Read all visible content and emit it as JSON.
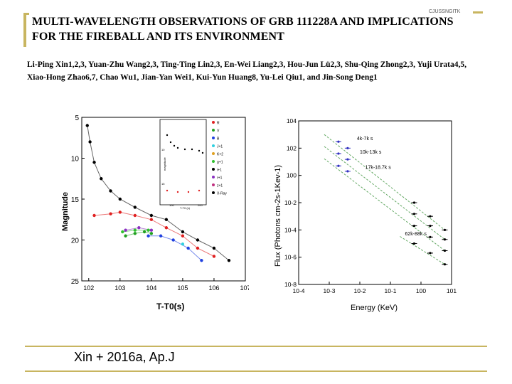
{
  "watermark": "CJUSSNGITK",
  "title": "MULTI-WAVELENGTH OBSERVATIONS OF GRB 111228A AND IMPLICATIONS FOR THE FIREBALL AND ITS ENVIRONMENT",
  "authors": "Li-Ping Xin1,2,3, Yuan-Zhu Wang2,3, Ting-Ting Lin2,3, En-Wei Liang2,3, Hou-Jun Lü2,3, Shu-Qing Zhong2,3, Yuji Urata4,5, Xiao-Hong Zhao6,7, Chao Wu1, Jian-Yan Wei1, Kui-Yun Huang8, Yu-Lei Qiu1, and Jin-Song Deng1",
  "citation": "Xin + 2016a, Ap.J",
  "colors": {
    "accent": "#c8b560"
  },
  "chart_data": [
    {
      "type": "scatter",
      "title": "",
      "xlabel": "T-T0(s)",
      "ylabel": "Magnitude",
      "xscale": "log",
      "xlim": [
        60,
        10000000
      ],
      "ylim": [
        25,
        5
      ],
      "x_ticks": [
        "10^2",
        "10^3",
        "10^4",
        "10^5",
        "10^6",
        "10^7"
      ],
      "y_ticks": [
        "5",
        "10",
        "15",
        "20",
        "25"
      ],
      "legend": [
        "R",
        "V",
        "B",
        "J+1",
        "K+2",
        "g+1",
        "i+1",
        "r+1",
        "z+1",
        "X-Ray"
      ],
      "legend_position": "top-right",
      "series": [
        {
          "name": "X-Ray",
          "color": "#000000",
          "points": [
            [
              90,
              6
            ],
            [
              110,
              8
            ],
            [
              150,
              10.5
            ],
            [
              250,
              12.5
            ],
            [
              500,
              14
            ],
            [
              1000,
              15
            ],
            [
              3000,
              16
            ],
            [
              10000,
              17
            ],
            [
              30000,
              17.5
            ],
            [
              100000,
              19
            ],
            [
              300000,
              20
            ],
            [
              1000000,
              21
            ],
            [
              3000000,
              22.5
            ]
          ]
        },
        {
          "name": "R",
          "color": "#e02020",
          "points": [
            [
              150,
              17
            ],
            [
              500,
              16.8
            ],
            [
              1000,
              16.6
            ],
            [
              3000,
              17
            ],
            [
              10000,
              17.5
            ],
            [
              30000,
              18.5
            ],
            [
              100000,
              19.5
            ],
            [
              300000,
              21
            ],
            [
              1000000,
              22
            ]
          ]
        },
        {
          "name": "V",
          "color": "#20a020",
          "points": [
            [
              1500,
              19.5
            ],
            [
              3000,
              19.2
            ],
            [
              6000,
              19
            ],
            [
              10000,
              19.2
            ]
          ]
        },
        {
          "name": "B",
          "color": "#2040e0",
          "points": [
            [
              8000,
              19.5
            ],
            [
              20000,
              19.5
            ],
            [
              50000,
              20
            ],
            [
              150000,
              21
            ],
            [
              400000,
              22.5
            ]
          ]
        },
        {
          "name": "g+1",
          "color": "#30c030",
          "points": [
            [
              1200,
              19
            ],
            [
              3000,
              18.8
            ],
            [
              8000,
              18.8
            ]
          ]
        },
        {
          "name": "i+1",
          "color": "#8a30c0",
          "points": [
            [
              1500,
              18.8
            ],
            [
              4000,
              18.5
            ],
            [
              10000,
              18.8
            ]
          ]
        },
        {
          "name": "J+1",
          "color": "#30d0e0",
          "points": [
            [
              100000,
              20.5
            ]
          ]
        }
      ],
      "inset": {
        "ylabel": "magnitude",
        "xlabel": "T-T0 (s)",
        "x_ticks": [
          "100",
          "200"
        ],
        "y_ticks": [
          "10",
          "15"
        ]
      }
    },
    {
      "type": "scatter",
      "title": "",
      "xlabel": "Energy (KeV)",
      "ylabel": "Flux (Photons cm-2s-1Kev-1)",
      "xscale": "log",
      "yscale": "log",
      "xlim": [
        0.0001,
        10
      ],
      "ylim": [
        1e-08,
        10000
      ],
      "x_ticks": [
        "10^-4",
        "10^-3",
        "10^-2",
        "10^-1",
        "10^0",
        "10^1"
      ],
      "y_ticks": [
        "10^4",
        "10^2",
        "10^0",
        "10^-2",
        "10^-4",
        "10^-6",
        "10^-8"
      ],
      "annotations": [
        "4k-7k s",
        "10k-13k s",
        "17k-18.7k s",
        "62k-88k s"
      ],
      "series": [
        {
          "name": "4k-7k s",
          "points": [
            [
              0.002,
              300
            ],
            [
              0.004,
              100
            ],
            [
              0.6,
              0.01
            ],
            [
              2,
              0.001
            ],
            [
              6,
              0.0001
            ]
          ]
        },
        {
          "name": "10k-13k s",
          "points": [
            [
              0.002,
              40
            ],
            [
              0.004,
              15
            ],
            [
              0.6,
              0.0015
            ],
            [
              2,
              0.0002
            ],
            [
              6,
              2e-05
            ]
          ]
        },
        {
          "name": "17k-18.7k s",
          "points": [
            [
              0.002,
              5
            ],
            [
              0.004,
              2
            ],
            [
              0.6,
              0.0002
            ],
            [
              2,
              3e-05
            ],
            [
              6,
              3e-06
            ]
          ]
        },
        {
          "name": "62k-88k s",
          "points": [
            [
              0.6,
              1e-05
            ],
            [
              2,
              2e-06
            ],
            [
              6,
              3e-07
            ]
          ]
        }
      ]
    }
  ]
}
